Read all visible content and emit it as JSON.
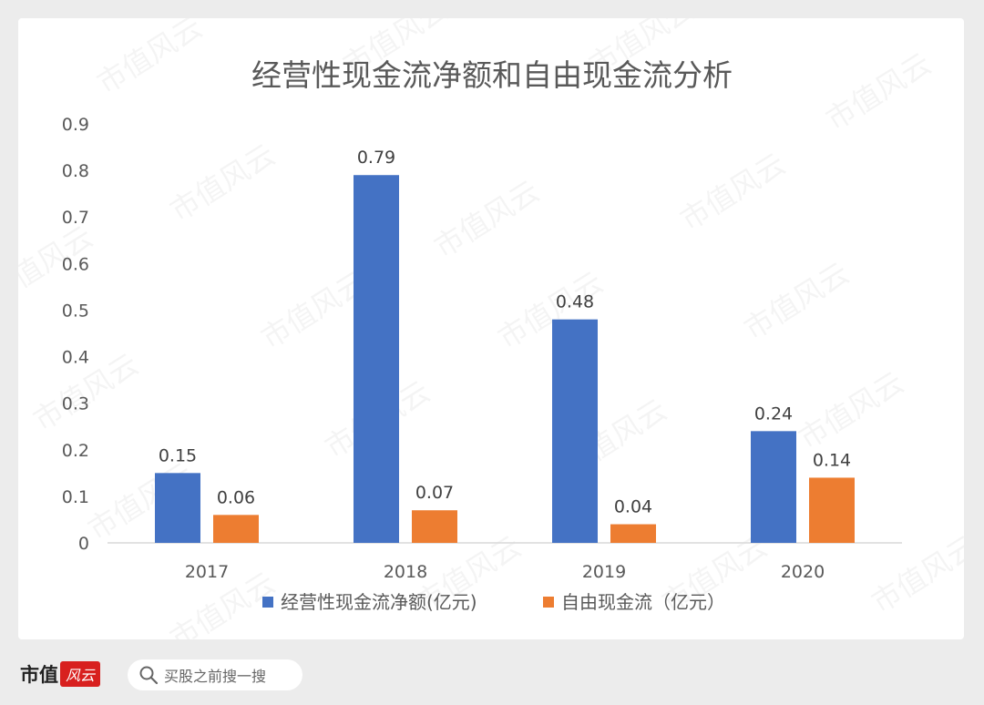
{
  "chart_data": {
    "type": "bar",
    "title": "经营性现金流净额和自由现金流分析",
    "categories": [
      "2017",
      "2018",
      "2019",
      "2020"
    ],
    "series": [
      {
        "name": "经营性现金流净额(亿元)",
        "values": [
          0.15,
          0.79,
          0.48,
          0.24
        ],
        "color": "#4472c4"
      },
      {
        "name": "自由现金流（亿元）",
        "values": [
          0.06,
          0.07,
          0.04,
          0.14
        ],
        "color": "#ed7d31"
      }
    ],
    "ylim": [
      0,
      0.9
    ],
    "yticks": [
      "0",
      "0.1",
      "0.2",
      "0.3",
      "0.4",
      "0.5",
      "0.6",
      "0.7",
      "0.8",
      "0.9"
    ],
    "data_labels": [
      [
        "0.15",
        "0.79",
        "0.48",
        "0.24"
      ],
      [
        "0.06",
        "0.07",
        "0.04",
        "0.14"
      ]
    ],
    "legend": "bottom",
    "grid": false
  },
  "watermark": "市值风云",
  "footer": {
    "brand_text": "市值",
    "brand_mark": "风云",
    "search_placeholder": "买股之前搜一搜",
    "search_icon": "search-icon"
  }
}
